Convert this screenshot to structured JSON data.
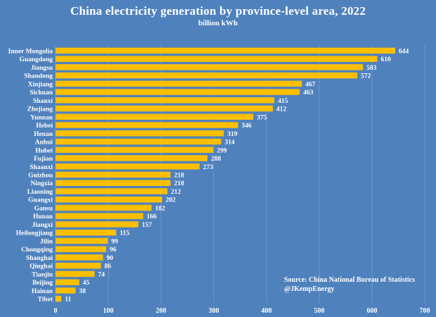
{
  "chart_data": {
    "type": "bar",
    "orientation": "horizontal",
    "title": "China electricity generation by province-level area, 2022",
    "subtitle": "billion kWh",
    "categories": [
      "Inner Mongolia",
      "Guangdong",
      "Jiangsu",
      "Shandong",
      "Xinjiang",
      "Sichuan",
      "Shanxi",
      "Zhejiang",
      "Yunnan",
      "Hebei",
      "Henan",
      "Anhui",
      "Hubei",
      "Fujian",
      "Shaanxi",
      "Guizhou",
      "Ningxia",
      "Liaoning",
      "Guangxi",
      "Gansu",
      "Hunan",
      "Jiangxi",
      "Heilongjiang",
      "Jilin",
      "Chongqing",
      "Shanghai",
      "Qinghai",
      "Tianjin",
      "Beijing",
      "Hainan",
      "Tibet"
    ],
    "values": [
      644,
      610,
      583,
      572,
      467,
      463,
      415,
      412,
      375,
      346,
      319,
      314,
      299,
      288,
      273,
      218,
      218,
      212,
      202,
      182,
      166,
      157,
      115,
      99,
      96,
      90,
      86,
      74,
      45,
      38,
      11
    ],
    "xlim": [
      0,
      700
    ],
    "xticks": [
      0,
      100,
      200,
      300,
      400,
      500,
      600,
      700
    ],
    "grid": true,
    "colors": {
      "bar": "#fcbf00",
      "background": "#4f81bd",
      "grid": "#6f97c9"
    }
  },
  "source": {
    "line1": "Source: China National Bureau of Statistics",
    "line2": "@JKempEnergy"
  }
}
